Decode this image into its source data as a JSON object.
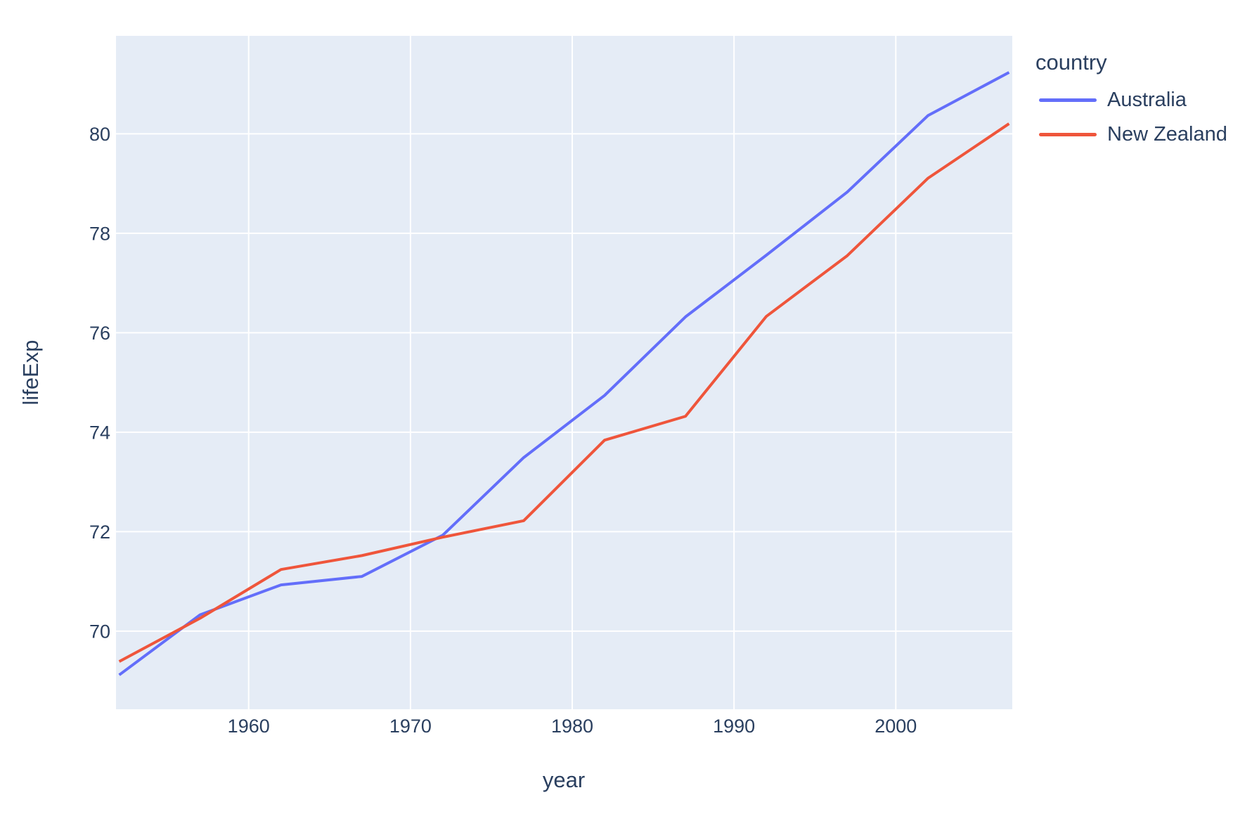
{
  "style": {
    "paper_bg": "#ffffff",
    "plot_bg": "#e5ecf6",
    "grid_color": "#ffffff",
    "text_color": "#2a3f5f"
  },
  "chart_data": {
    "type": "line",
    "title": "",
    "xlabel": "year",
    "ylabel": "lifeExp",
    "x": [
      1952,
      1957,
      1962,
      1967,
      1972,
      1977,
      1982,
      1987,
      1992,
      1997,
      2002,
      2007
    ],
    "series": [
      {
        "name": "Australia",
        "color": "#636efa",
        "values": [
          69.12,
          70.33,
          70.93,
          71.1,
          71.93,
          73.49,
          74.74,
          76.32,
          77.56,
          78.83,
          80.37,
          81.235
        ]
      },
      {
        "name": "New Zealand",
        "color": "#ef553b",
        "values": [
          69.39,
          70.26,
          71.24,
          71.52,
          71.89,
          72.22,
          73.84,
          74.32,
          76.33,
          77.55,
          79.11,
          80.204
        ]
      }
    ],
    "xlim": [
      1951.8,
      2007.2
    ],
    "ylim": [
      68.43,
      81.97
    ],
    "xticks": [
      1960,
      1970,
      1980,
      1990,
      2000
    ],
    "yticks": [
      70,
      72,
      74,
      76,
      78,
      80
    ],
    "grid": true,
    "legend": {
      "title": "country",
      "position": "right-top-outside"
    }
  }
}
